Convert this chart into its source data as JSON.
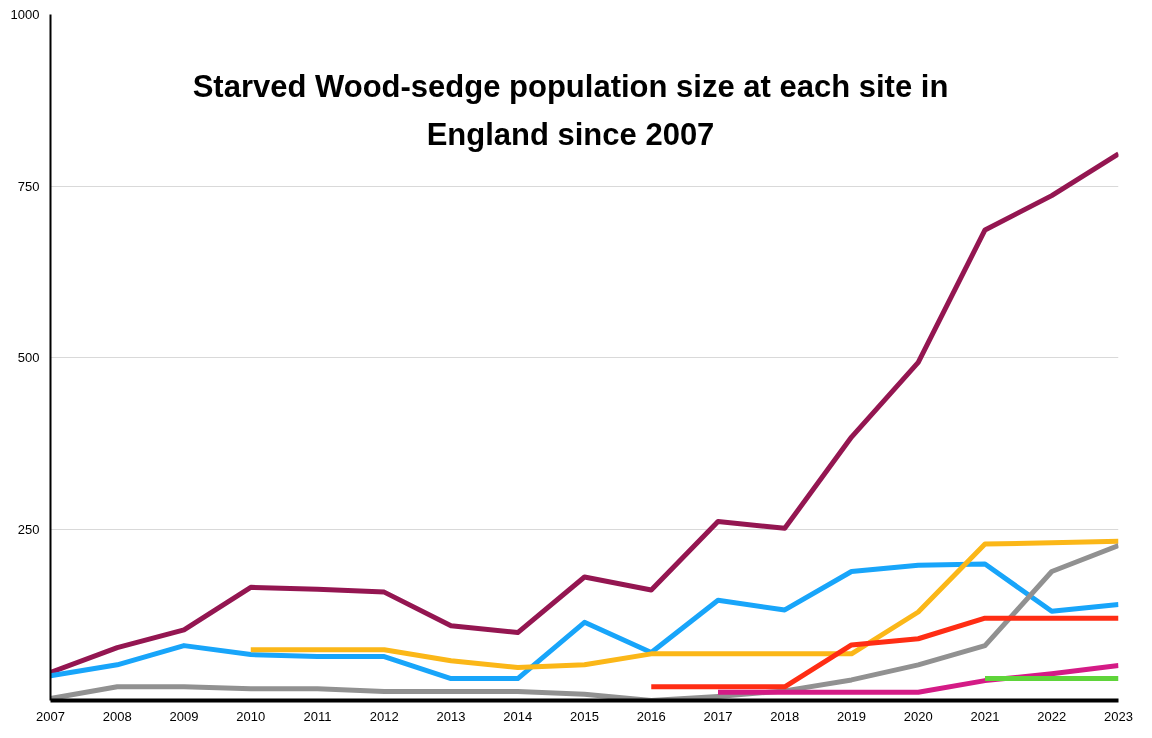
{
  "chart_data": {
    "type": "line",
    "title": "Starved Wood-sedge population size at each site in\nEngland since 2007",
    "x": [
      2007,
      2008,
      2009,
      2010,
      2011,
      2012,
      2013,
      2014,
      2015,
      2016,
      2017,
      2018,
      2019,
      2020,
      2021,
      2022,
      2023
    ],
    "xlim": [
      2007,
      2023
    ],
    "xticks": [
      2007,
      2008,
      2009,
      2010,
      2011,
      2012,
      2013,
      2014,
      2015,
      2016,
      2017,
      2018,
      2019,
      2020,
      2021,
      2022,
      2023
    ],
    "ylim": [
      0,
      1000
    ],
    "yticks": [
      250,
      500,
      750,
      1000
    ],
    "grid": "y",
    "marker": "none",
    "line_style": "solid",
    "series": [
      {
        "color": "#941651",
        "values": [
          41,
          77,
          103,
          165,
          162,
          158,
          109,
          99,
          180,
          161,
          261,
          251,
          384,
          493,
          686,
          736,
          797
        ]
      },
      {
        "color": "#18a5fa",
        "values": [
          36,
          52,
          80,
          67,
          64,
          64,
          32,
          32,
          114,
          70,
          146,
          132,
          188,
          197,
          199,
          130,
          140
        ]
      },
      {
        "color": "#fbb718",
        "values": [
          null,
          null,
          null,
          74,
          74,
          74,
          58,
          48,
          52,
          68,
          68,
          68,
          68,
          129,
          228,
          230,
          232
        ]
      },
      {
        "color": "#919191",
        "values": [
          3,
          20,
          20,
          17,
          17,
          13,
          13,
          13,
          9,
          0,
          6,
          14,
          30,
          52,
          80,
          188,
          226
        ]
      },
      {
        "color": "#ff2d14",
        "values": [
          null,
          null,
          null,
          null,
          null,
          null,
          null,
          null,
          null,
          20,
          20,
          20,
          81,
          90,
          120,
          120,
          120
        ]
      },
      {
        "color": "#d41b86",
        "values": [
          null,
          null,
          null,
          null,
          null,
          null,
          null,
          null,
          null,
          null,
          12,
          12,
          12,
          12,
          29,
          39,
          51
        ]
      },
      {
        "color": "#5fd43a",
        "values": [
          null,
          null,
          null,
          null,
          null,
          null,
          null,
          null,
          null,
          null,
          null,
          null,
          null,
          null,
          32,
          32,
          32
        ]
      }
    ]
  }
}
